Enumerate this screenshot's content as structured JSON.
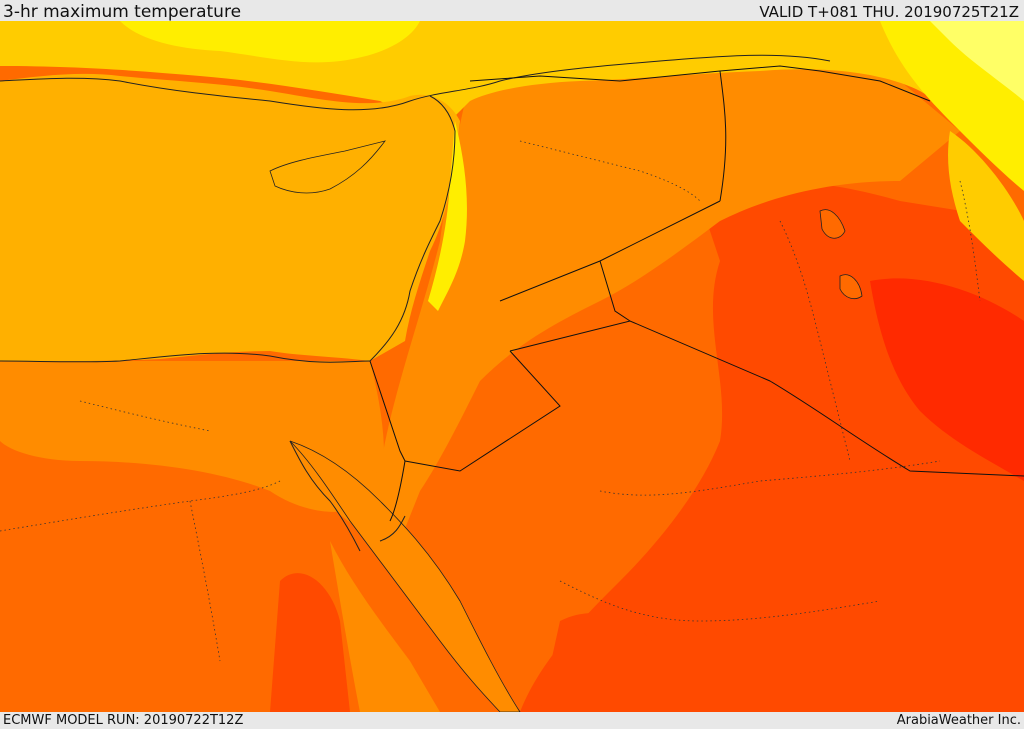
{
  "header": {
    "title": "3-hr maximum temperature",
    "valid": "VALID T+081 THU. 20190725T21Z"
  },
  "footer": {
    "model_run": "ECMWF MODEL RUN: 20190722T12Z",
    "credit": "ArabiaWeather Inc."
  },
  "map": {
    "colors": {
      "pale_yellow": "#ffff66",
      "yellow": "#ffee00",
      "gold": "#ffcc00",
      "amber": "#ffb000",
      "orange": "#ff8c00",
      "dark_orange": "#ff6a00",
      "red_orange": "#ff4a00",
      "red": "#ff2a00",
      "coast": "#222222",
      "border": "#111111"
    }
  }
}
